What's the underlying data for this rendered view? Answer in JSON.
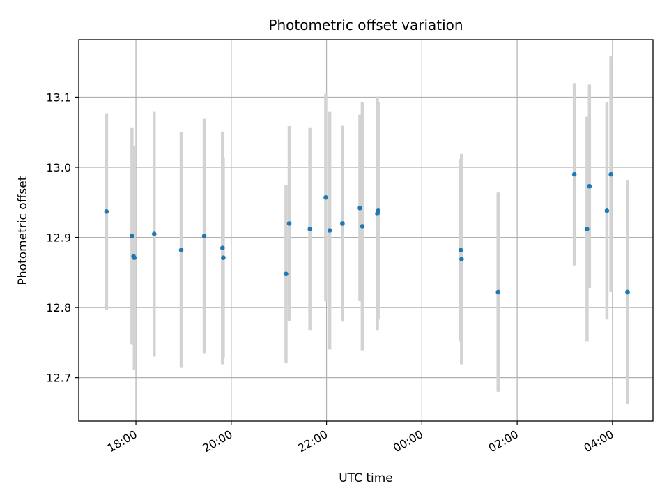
{
  "chart_data": {
    "type": "scatter",
    "title": "Photometric offset variation",
    "xlabel": "UTC time",
    "ylabel": "Photometric offset",
    "x_axis_type": "time",
    "x_start": "17:00",
    "xlim_hours": [
      16.8,
      28.85
    ],
    "ylim": [
      12.638,
      13.182
    ],
    "x_ticks": [
      {
        "hour": 18,
        "label": "18:00"
      },
      {
        "hour": 20,
        "label": "20:00"
      },
      {
        "hour": 22,
        "label": "22:00"
      },
      {
        "hour": 24,
        "label": "00:00"
      },
      {
        "hour": 26,
        "label": "02:00"
      },
      {
        "hour": 28,
        "label": "04:00"
      }
    ],
    "y_ticks": [
      12.7,
      12.8,
      12.9,
      13.0,
      13.1
    ],
    "y_tick_labels": [
      "12.7",
      "12.8",
      "12.9",
      "13.0",
      "13.1"
    ],
    "grid": true,
    "colors": {
      "point": "#1f77b4",
      "errorbar": "#d3d3d3",
      "grid": "#b0b0b0"
    },
    "points": [
      {
        "time": "17:23",
        "y": 12.937,
        "err": 0.14
      },
      {
        "time": "17:55",
        "y": 12.902,
        "err": 0.155
      },
      {
        "time": "17:57",
        "y": 12.873,
        "err": 0.125
      },
      {
        "time": "17:58",
        "y": 12.871,
        "err": 0.16
      },
      {
        "time": "18:23",
        "y": 12.905,
        "err": 0.175
      },
      {
        "time": "18:57",
        "y": 12.882,
        "err": 0.168
      },
      {
        "time": "19:26",
        "y": 12.902,
        "err": 0.168
      },
      {
        "time": "19:49",
        "y": 12.885,
        "err": 0.166
      },
      {
        "time": "19:50",
        "y": 12.871,
        "err": 0.143
      },
      {
        "time": "21:09",
        "y": 12.848,
        "err": 0.127
      },
      {
        "time": "21:13",
        "y": 12.92,
        "err": 0.139
      },
      {
        "time": "21:39",
        "y": 12.912,
        "err": 0.145
      },
      {
        "time": "21:59",
        "y": 12.957,
        "err": 0.148
      },
      {
        "time": "22:04",
        "y": 12.91,
        "err": 0.17
      },
      {
        "time": "22:20",
        "y": 12.92,
        "err": 0.14
      },
      {
        "time": "22:42",
        "y": 12.942,
        "err": 0.133
      },
      {
        "time": "22:45",
        "y": 12.916,
        "err": 0.177
      },
      {
        "time": "23:04",
        "y": 12.934,
        "err": 0.167
      },
      {
        "time": "23:05",
        "y": 12.938,
        "err": 0.155
      },
      {
        "time": "00:49",
        "y": 12.882,
        "err": 0.13
      },
      {
        "time": "00:50",
        "y": 12.869,
        "err": 0.15
      },
      {
        "time": "01:36",
        "y": 12.822,
        "err": 0.142
      },
      {
        "time": "03:12",
        "y": 12.99,
        "err": 0.13
      },
      {
        "time": "03:28",
        "y": 12.912,
        "err": 0.16
      },
      {
        "time": "03:31",
        "y": 12.973,
        "err": 0.145
      },
      {
        "time": "03:53",
        "y": 12.938,
        "err": 0.155
      },
      {
        "time": "03:58",
        "y": 12.99,
        "err": 0.168
      },
      {
        "time": "04:19",
        "y": 12.822,
        "err": 0.16
      }
    ]
  }
}
